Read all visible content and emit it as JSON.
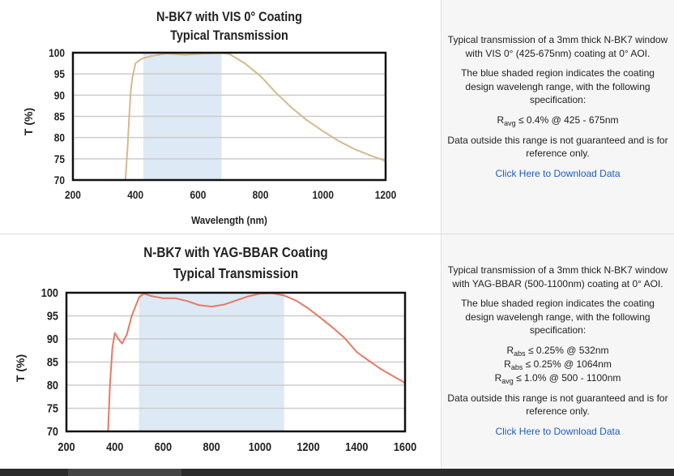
{
  "colors": {
    "band": "#dde9f4",
    "curve1": "#d6b98e",
    "curve2": "#e57a66",
    "grid": "#cccccc",
    "link": "#1d5fb8"
  },
  "sections": [
    {
      "description": "Typical transmission of a 3mm thick N-BK7 window with VIS 0° (425-675nm) coating at 0° AOI.",
      "shaded_note": "The blue shaded region indicates the coating design wavelengh range, with the following specification:",
      "specs": [
        {
          "sym": "R",
          "sub": "avg",
          "text": " ≤ 0.4% @ 425 - 675nm"
        }
      ],
      "disclaimer": "Data outside this range is not guaranteed and is for reference only.",
      "download_link": "Click Here to Download Data"
    },
    {
      "description": "Typical transmission of a 3mm thick N-BK7 window with YAG-BBAR (500-1100nm) coating at 0° AOI.",
      "shaded_note": "The blue shaded region indicates the coating design wavelengh range, with the following specification:",
      "specs": [
        {
          "sym": "R",
          "sub": "abs",
          "text": " ≤ 0.25% @ 532nm"
        },
        {
          "sym": "R",
          "sub": "abs",
          "text": " ≤ 0.25% @ 1064nm"
        },
        {
          "sym": "R",
          "sub": "avg",
          "text": " ≤ 1.0% @ 500 - 1100nm"
        }
      ],
      "disclaimer": "Data outside this range is not guaranteed and is for reference only.",
      "download_link": "Click Here to Download Data"
    }
  ],
  "chart_data": [
    {
      "type": "line",
      "title": [
        "N-BK7 with VIS 0° Coating",
        "Typical Transmission"
      ],
      "xlabel": "Wavelength (nm)",
      "ylabel": "T (%)",
      "xlim": [
        200,
        1200
      ],
      "ylim": [
        70,
        100
      ],
      "xticks": [
        200,
        400,
        600,
        800,
        1000,
        1200
      ],
      "yticks": [
        100,
        95,
        90,
        85,
        80,
        75,
        70
      ],
      "grid": true,
      "shaded_band": [
        425,
        675
      ],
      "series": [
        {
          "name": "Transmission",
          "x": [
            368,
            375,
            380,
            385,
            390,
            400,
            420,
            450,
            500,
            560,
            620,
            680,
            700,
            750,
            800,
            850,
            900,
            950,
            1000,
            1050,
            1100,
            1150,
            1200
          ],
          "y": [
            70,
            78,
            85,
            91,
            94,
            97.5,
            98.6,
            99.2,
            99.8,
            99.5,
            99.8,
            99.9,
            99.7,
            97.5,
            94.5,
            90.5,
            87,
            84,
            81.5,
            79.2,
            77.3,
            75.8,
            74.5
          ]
        }
      ]
    },
    {
      "type": "line",
      "title": [
        "N-BK7 with YAG-BBAR Coating",
        "Typical Transmission"
      ],
      "xlabel": "",
      "ylabel": "T (%)",
      "xlim": [
        200,
        1600
      ],
      "ylim": [
        70,
        100
      ],
      "xticks": [
        200,
        400,
        600,
        800,
        1000,
        1200,
        1400,
        1600
      ],
      "yticks": [
        100,
        95,
        90,
        85,
        80,
        75,
        70
      ],
      "grid": true,
      "shaded_band": [
        500,
        1100
      ],
      "series": [
        {
          "name": "Transmission",
          "x": [
            372,
            380,
            390,
            400,
            415,
            430,
            450,
            470,
            500,
            520,
            550,
            600,
            650,
            700,
            750,
            800,
            850,
            900,
            950,
            1000,
            1050,
            1100,
            1150,
            1200,
            1250,
            1300,
            1350,
            1400,
            1420,
            1500,
            1600
          ],
          "y": [
            70,
            80,
            88,
            91.3,
            90,
            89,
            91,
            95,
            99,
            99.8,
            99.3,
            98.8,
            98.8,
            98.2,
            97.3,
            97,
            97.4,
            98.3,
            99.2,
            99.8,
            99.9,
            99.4,
            98.3,
            96.6,
            94.6,
            92.5,
            90.2,
            87.2,
            86.4,
            83.5,
            80.5
          ]
        }
      ]
    }
  ]
}
